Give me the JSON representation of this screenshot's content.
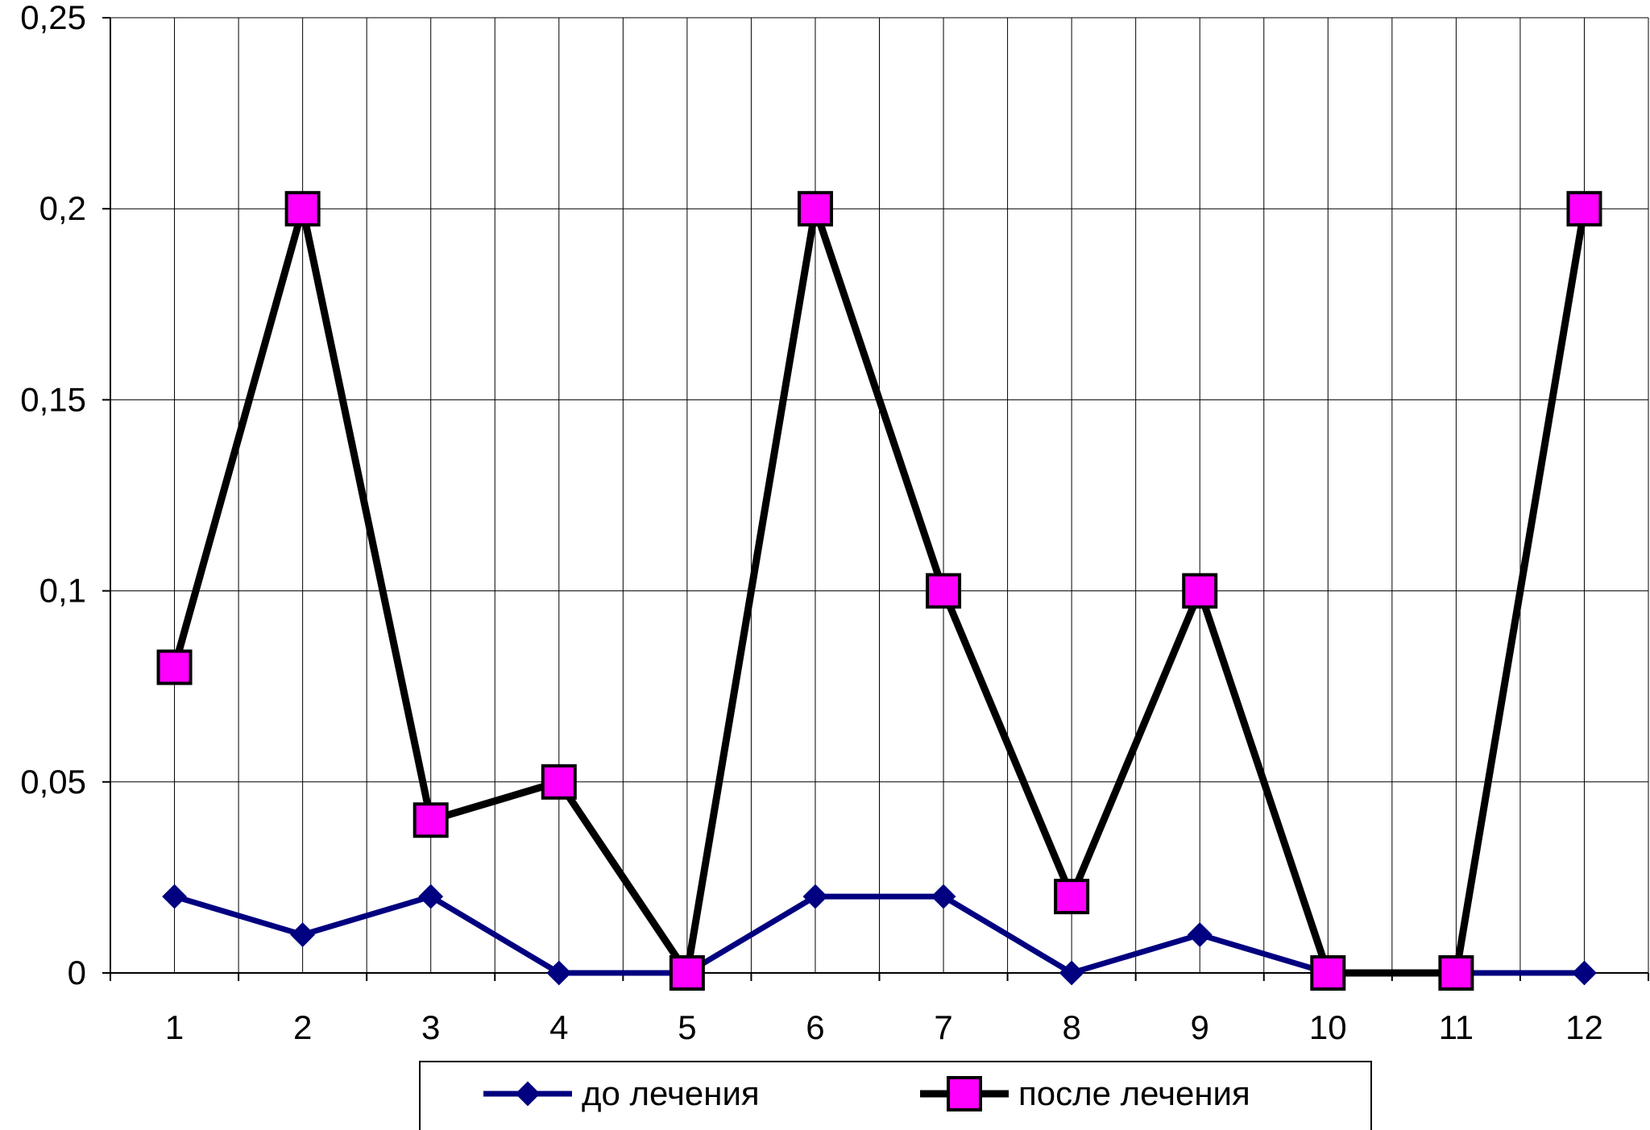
{
  "chart_data": {
    "type": "line",
    "categories": [
      "1",
      "2",
      "3",
      "4",
      "5",
      "6",
      "7",
      "8",
      "9",
      "10",
      "11",
      "12"
    ],
    "y_ticks": [
      "0",
      "0,05",
      "0,1",
      "0,15",
      "0,2",
      "0,25"
    ],
    "ylim": [
      0,
      0.25
    ],
    "grid": true,
    "legend_position": "bottom",
    "series": [
      {
        "name": "до лечения",
        "values": [
          0.02,
          0.01,
          0.02,
          0,
          0,
          0.02,
          0.02,
          0,
          0.01,
          0,
          0,
          0
        ],
        "line_color": "#000080",
        "marker": "diamond",
        "marker_color": "#000080"
      },
      {
        "name": "после лечения",
        "values": [
          0.08,
          0.2,
          0.04,
          0.05,
          0,
          0.2,
          0.1,
          0.02,
          0.1,
          0,
          0,
          0.2
        ],
        "line_color": "#000000",
        "marker": "square",
        "marker_color": "#FF00FF"
      }
    ]
  }
}
